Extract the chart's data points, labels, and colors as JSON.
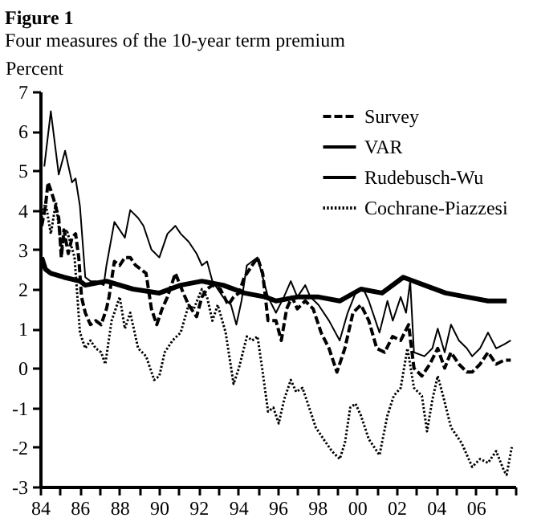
{
  "chart_data": {
    "type": "line",
    "title": "Figure 1",
    "subtitle": "Four measures of the 10-year term premium",
    "ylabel": "Percent",
    "xlim": [
      1984,
      2008
    ],
    "xticks": [
      {
        "value": 1984,
        "label": "84"
      },
      {
        "value": 1985,
        "label": null
      },
      {
        "value": 1986,
        "label": "86"
      },
      {
        "value": 1987,
        "label": null
      },
      {
        "value": 1988,
        "label": "88"
      },
      {
        "value": 1989,
        "label": null
      },
      {
        "value": 1990,
        "label": "90"
      },
      {
        "value": 1991,
        "label": null
      },
      {
        "value": 1992,
        "label": "92"
      },
      {
        "value": 1993,
        "label": null
      },
      {
        "value": 1994,
        "label": "94"
      },
      {
        "value": 1995,
        "label": null
      },
      {
        "value": 1996,
        "label": "96"
      },
      {
        "value": 1997,
        "label": null
      },
      {
        "value": 1998,
        "label": "98"
      },
      {
        "value": 1999,
        "label": null
      },
      {
        "value": 2000,
        "label": "00"
      },
      {
        "value": 2001,
        "label": null
      },
      {
        "value": 2002,
        "label": "02"
      },
      {
        "value": 2003,
        "label": null
      },
      {
        "value": 2004,
        "label": "04"
      },
      {
        "value": 2005,
        "label": null
      },
      {
        "value": 2006,
        "label": "06"
      },
      {
        "value": 2007,
        "label": null
      },
      {
        "value": 2008,
        "label": null
      }
    ],
    "ylim": [
      -3,
      7
    ],
    "yticks": [
      -3,
      -2,
      -1,
      0,
      1,
      2,
      3,
      4,
      5,
      6,
      7
    ],
    "grid": false,
    "legend": "top right",
    "marker": "none",
    "series": [
      {
        "name": "Survey",
        "color": "#000000",
        "line_style": "dashed",
        "x": [
          1984.08,
          1984.27,
          1984.4,
          1984.54,
          1984.67,
          1984.94,
          1985.07,
          1985.2,
          1985.42,
          1985.61,
          1985.79,
          1985.95,
          1986.09,
          1986.28,
          1986.54,
          1986.81,
          1987.08,
          1987.35,
          1987.48,
          1987.75,
          1988.02,
          1988.28,
          1988.55,
          1988.82,
          1989.09,
          1989.35,
          1989.62,
          1989.89,
          1990.16,
          1990.43,
          1990.83,
          1991.23,
          1991.5,
          1991.9,
          1992.17,
          1992.43,
          1992.7,
          1993.1,
          1993.5,
          1993.77,
          1994.04,
          1994.31,
          1994.71,
          1994.98,
          1995.24,
          1995.51,
          1995.91,
          1996.18,
          1996.45,
          1996.72,
          1996.99,
          1997.39,
          1997.79,
          1998.19,
          1998.59,
          1998.99,
          1999.39,
          1999.8,
          2000.2,
          2000.6,
          2001.0,
          2001.4,
          2001.8,
          2002.21,
          2002.61,
          2002.88,
          2003.28,
          2003.68,
          2004.08,
          2004.43,
          2004.75,
          2005.15,
          2005.55,
          2005.82,
          2006.22,
          2006.62,
          2007.03,
          2007.43,
          2007.77
        ],
        "values": [
          3.6,
          4.1,
          4.7,
          4.5,
          4.3,
          3.8,
          2.8,
          3.5,
          2.9,
          3.3,
          3.4,
          2.8,
          1.8,
          1.4,
          1.1,
          1.2,
          1.1,
          1.5,
          1.8,
          2.7,
          2.6,
          2.8,
          2.8,
          2.6,
          2.5,
          2.4,
          1.5,
          1.1,
          1.5,
          1.8,
          2.4,
          1.9,
          1.6,
          1.3,
          1.8,
          2.0,
          2.1,
          2.0,
          1.6,
          1.8,
          1.9,
          2.3,
          2.6,
          2.8,
          2.4,
          1.2,
          1.2,
          0.7,
          1.5,
          1.8,
          1.5,
          1.7,
          1.5,
          0.9,
          0.5,
          -0.1,
          0.5,
          1.4,
          1.6,
          1.2,
          0.5,
          0.4,
          0.8,
          0.7,
          1.1,
          0.0,
          -0.2,
          0.1,
          0.5,
          0.0,
          0.4,
          0.1,
          -0.1,
          -0.1,
          0.1,
          0.4,
          0.1,
          0.2,
          0.2
        ]
      },
      {
        "name": "VAR",
        "color": "#000000",
        "line_style": "solid",
        "x": [
          1984.21,
          1984.54,
          1984.94,
          1985.26,
          1985.61,
          1985.79,
          1986.01,
          1986.28,
          1986.54,
          1986.81,
          1987.21,
          1987.35,
          1987.75,
          1988.28,
          1988.55,
          1988.95,
          1989.22,
          1989.62,
          1990.02,
          1990.43,
          1990.83,
          1991.1,
          1991.5,
          1991.9,
          1992.17,
          1992.43,
          1992.7,
          1992.97,
          1993.24,
          1993.64,
          1993.91,
          1994.17,
          1994.44,
          1994.71,
          1994.98,
          1995.24,
          1995.51,
          1995.91,
          1996.31,
          1996.66,
          1996.99,
          1997.39,
          1997.65,
          1998.06,
          1998.59,
          1999.13,
          1999.53,
          1999.93,
          2000.33,
          2000.6,
          2001.14,
          2001.54,
          2001.81,
          2002.21,
          2002.48,
          2002.69,
          2002.88,
          2003.41,
          2003.81,
          2004.08,
          2004.43,
          2004.75,
          2005.15,
          2005.55,
          2005.82,
          2006.22,
          2006.62,
          2007.03,
          2007.43,
          2007.77
        ],
        "values": [
          5.1,
          6.5,
          4.9,
          5.5,
          4.7,
          4.8,
          4.1,
          2.3,
          2.2,
          2.2,
          2.1,
          2.6,
          3.7,
          3.3,
          4.0,
          3.8,
          3.6,
          3.0,
          2.8,
          3.4,
          3.6,
          3.4,
          3.2,
          2.9,
          2.6,
          2.7,
          2.2,
          2.0,
          1.8,
          1.6,
          1.1,
          1.7,
          2.6,
          2.7,
          2.8,
          2.3,
          1.8,
          1.4,
          1.8,
          2.2,
          1.8,
          2.1,
          1.8,
          1.6,
          1.2,
          0.7,
          1.4,
          1.9,
          2.0,
          1.7,
          0.9,
          1.7,
          1.2,
          1.8,
          1.4,
          2.2,
          0.4,
          0.3,
          0.5,
          1.0,
          0.4,
          1.1,
          0.7,
          0.5,
          0.3,
          0.5,
          0.9,
          0.5,
          0.6,
          0.7
        ]
      },
      {
        "name": "Rudebusch-Wu",
        "color": "#000000",
        "line_style": "solid",
        "x": [
          1984.08,
          1984.27,
          1984.54,
          1985.2,
          1986.01,
          1986.28,
          1987.35,
          1988.69,
          1990.02,
          1991.1,
          1992.17,
          1993.24,
          1994.31,
          1995.38,
          1995.91,
          1996.99,
          1998.06,
          1999.13,
          2000.2,
          2001.27,
          2002.34,
          2003.41,
          2004.48,
          2005.55,
          2006.62,
          2007.56
        ],
        "values": [
          2.8,
          2.5,
          2.4,
          2.3,
          2.2,
          2.1,
          2.2,
          2.0,
          1.9,
          2.1,
          2.2,
          2.1,
          1.9,
          1.8,
          1.7,
          1.8,
          1.8,
          1.7,
          2.0,
          1.9,
          2.3,
          2.1,
          1.9,
          1.8,
          1.7,
          1.7
        ]
      },
      {
        "name": "Cochrane-Piazzesi",
        "color": "#000000",
        "line_style": "dotted",
        "x": [
          1984.08,
          1984.27,
          1984.54,
          1984.8,
          1985.07,
          1985.34,
          1985.74,
          1986.01,
          1986.28,
          1986.54,
          1986.81,
          1987.08,
          1987.29,
          1987.61,
          1988.02,
          1988.28,
          1988.55,
          1988.95,
          1989.35,
          1989.76,
          1990.02,
          1990.29,
          1990.69,
          1991.1,
          1991.5,
          1991.76,
          1992.17,
          1992.43,
          1992.7,
          1992.97,
          1993.37,
          1993.77,
          1994.04,
          1994.44,
          1994.71,
          1994.98,
          1995.24,
          1995.51,
          1995.78,
          1996.05,
          1996.32,
          1996.66,
          1996.93,
          1997.25,
          1997.52,
          1997.92,
          1998.32,
          1998.73,
          1999.13,
          1999.39,
          1999.66,
          1999.93,
          2000.2,
          2000.6,
          2001.14,
          2001.54,
          2001.86,
          2002.21,
          2002.55,
          2002.88,
          2003.28,
          2003.54,
          2003.81,
          2004.08,
          2004.35,
          2004.75,
          2005.29,
          2005.82,
          2006.22,
          2006.62,
          2007.03,
          2007.43,
          2007.56,
          2007.82
        ],
        "values": [
          3.8,
          4.2,
          3.4,
          4.2,
          3.0,
          3.5,
          2.8,
          0.9,
          0.5,
          0.7,
          0.5,
          0.4,
          0.1,
          1.2,
          1.8,
          1.0,
          1.4,
          0.5,
          0.3,
          -0.3,
          -0.2,
          0.4,
          0.7,
          0.9,
          1.6,
          1.5,
          2.0,
          1.8,
          1.2,
          1.6,
          0.9,
          -0.4,
          0.0,
          0.8,
          0.7,
          0.8,
          -0.1,
          -1.1,
          -1.0,
          -1.4,
          -0.8,
          -0.3,
          -0.6,
          -0.5,
          -0.9,
          -1.5,
          -1.8,
          -2.1,
          -2.3,
          -1.9,
          -1.0,
          -0.9,
          -1.2,
          -1.8,
          -2.2,
          -1.2,
          -0.7,
          -0.5,
          0.5,
          -0.5,
          -0.7,
          -1.6,
          -0.8,
          -0.2,
          -0.7,
          -1.5,
          -1.9,
          -2.5,
          -2.3,
          -2.4,
          -2.1,
          -2.6,
          -2.7,
          -2.0
        ]
      }
    ]
  }
}
